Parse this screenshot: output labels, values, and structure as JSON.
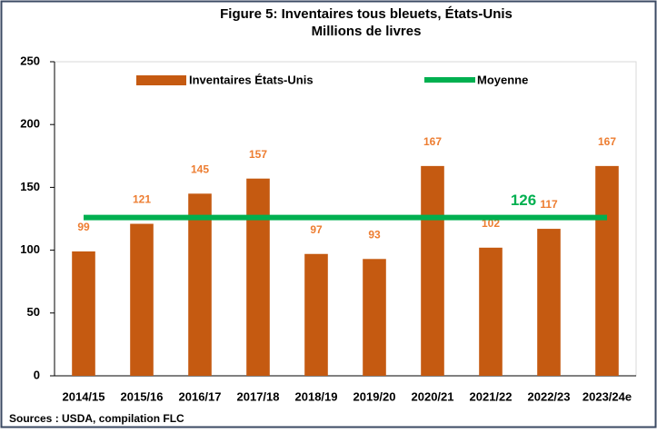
{
  "chart_data": {
    "type": "bar",
    "title": "Figure 5: Inventaires tous bleuets, États-Unis",
    "subtitle": "Millions de livres",
    "source": "Sources : USDA, compilation FLC",
    "categories": [
      "2014/15",
      "2015/16",
      "2016/17",
      "2017/18",
      "2018/19",
      "2019/20",
      "2020/21",
      "2021/22",
      "2022/23",
      "2023/24e"
    ],
    "series": [
      {
        "name": "Inventaires États-Unis",
        "type": "bar",
        "color": "#c55a11",
        "label_color": "#ed7d31",
        "values": [
          99,
          121,
          145,
          157,
          97,
          93,
          167,
          102,
          117,
          167
        ]
      },
      {
        "name": "Moyenne",
        "type": "line",
        "color": "#00b050",
        "values": [
          126,
          126,
          126,
          126,
          126,
          126,
          126,
          126,
          126,
          126
        ]
      }
    ],
    "ylim": [
      0,
      250
    ],
    "yticks": [
      0,
      50,
      100,
      150,
      200,
      250
    ],
    "grid": false,
    "legend": "top"
  }
}
